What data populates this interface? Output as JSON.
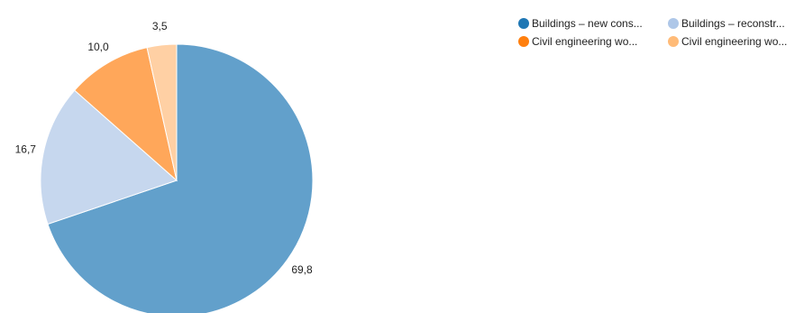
{
  "chart_data": {
    "type": "pie",
    "title": "",
    "slices": [
      {
        "label": "Buildings – new cons...",
        "value": 69.8,
        "value_label": "69,8",
        "color": "#62a0cb"
      },
      {
        "label": "Buildings – reconstr...",
        "value": 16.7,
        "value_label": "16,7",
        "color": "#c6d7ee"
      },
      {
        "label": "Civil engineering wo...",
        "value": 10.0,
        "value_label": "10,0",
        "color": "#ffa75a"
      },
      {
        "label": "Civil engineering wo...",
        "value": 3.5,
        "value_label": "3,5",
        "color": "#ffd0a4"
      }
    ],
    "legend": {
      "placement": "top-right",
      "items": [
        {
          "label": "Buildings – new cons...",
          "color": "#1f77b4"
        },
        {
          "label": "Buildings – reconstr...",
          "color": "#aec7e8"
        },
        {
          "label": "Civil engineering wo...",
          "color": "#ff7f0e"
        },
        {
          "label": "Civil engineering wo...",
          "color": "#ffbb78"
        }
      ]
    }
  }
}
